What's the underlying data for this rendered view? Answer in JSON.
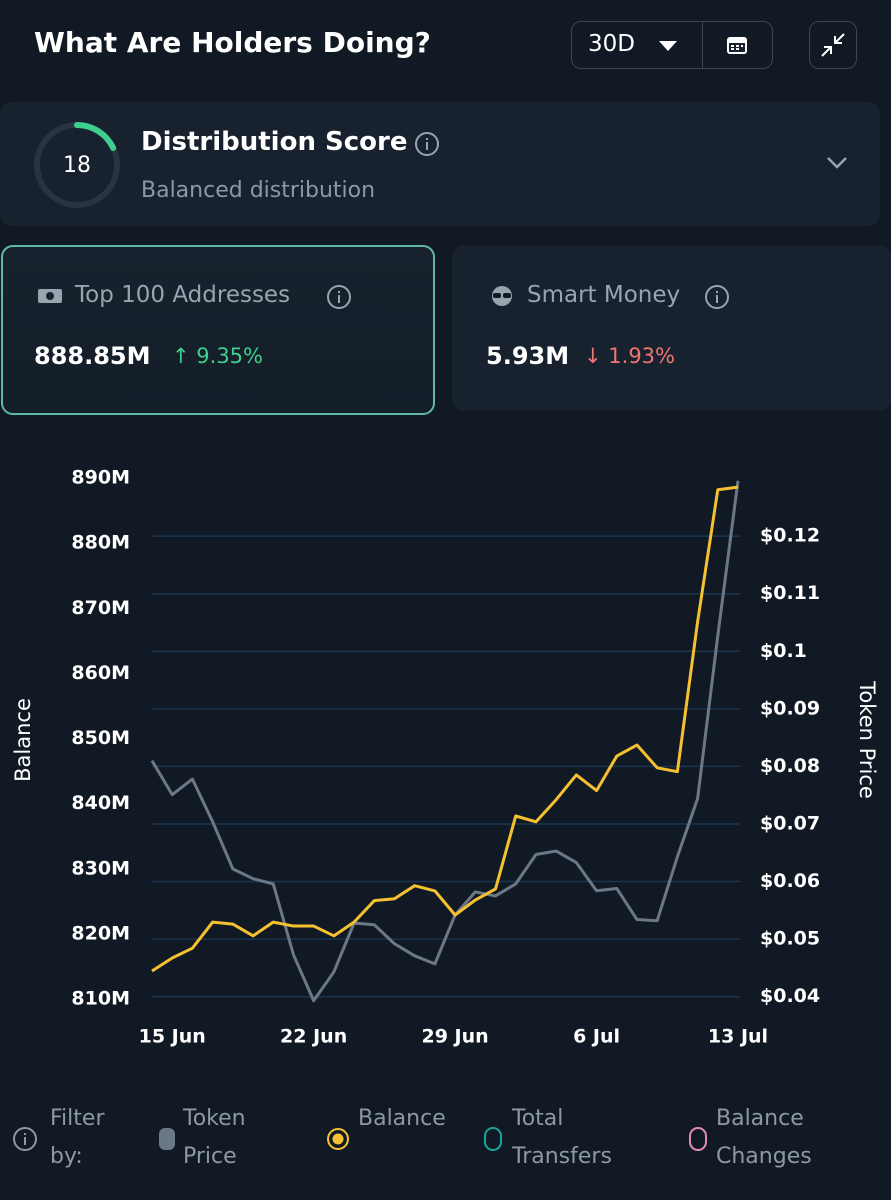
{
  "header": {
    "title": "What Are Holders Doing?",
    "period": "30D"
  },
  "score": {
    "value": 18,
    "max": 100,
    "title": "Distribution Score",
    "subtitle": "Balanced distribution",
    "color": "#3ecf8e"
  },
  "cards": [
    {
      "label": "Top 100 Addresses",
      "value": "888.85M",
      "change": "9.35%",
      "direction": "up"
    },
    {
      "label": "Smart Money",
      "value": "5.93M",
      "change": "1.93%",
      "direction": "down"
    }
  ],
  "chart_data": {
    "type": "line",
    "ylabel": "Balance",
    "y2label": "Token Price",
    "categories": [
      null,
      "15 Jun",
      null,
      null,
      null,
      null,
      null,
      null,
      "22 Jun",
      null,
      null,
      null,
      null,
      null,
      null,
      "29 Jun",
      null,
      null,
      null,
      null,
      null,
      null,
      "6 Jul",
      null,
      null,
      null,
      null,
      null,
      null,
      "13 Jul"
    ],
    "series": [
      {
        "name": "Token Price",
        "color": "#6b7888",
        "axis": "y2",
        "values": [
          0.081,
          0.0751,
          0.0778,
          0.0704,
          0.0622,
          0.0605,
          0.0596,
          0.0473,
          0.0393,
          0.0443,
          0.0528,
          0.0525,
          0.0492,
          0.0471,
          0.0457,
          0.0542,
          0.0582,
          0.0575,
          0.0596,
          0.0647,
          0.0653,
          0.0633,
          0.0584,
          0.0588,
          0.0534,
          0.0532,
          0.0643,
          0.0744,
          0.1027,
          0.1296
        ]
      },
      {
        "name": "Balance",
        "color": "#f5c131",
        "values": [
          814.3,
          816.3,
          817.8,
          821.8,
          821.5,
          819.7,
          821.8,
          821.2,
          821.2,
          819.7,
          821.8,
          825.1,
          825.4,
          827.4,
          826.6,
          822.9,
          825.2,
          826.9,
          838.1,
          837.2,
          840.6,
          844.4,
          842.0,
          847.3,
          849.0,
          845.5,
          844.9,
          867.9,
          888.2,
          888.6
        ]
      }
    ],
    "ylim": [
      810,
      890
    ],
    "yticks": [
      {
        "value": 810,
        "label": "810M"
      },
      {
        "value": 820,
        "label": "820M"
      },
      {
        "value": 830,
        "label": "830M"
      },
      {
        "value": 840,
        "label": "840M"
      },
      {
        "value": 850,
        "label": "850M"
      },
      {
        "value": 860,
        "label": "860M"
      },
      {
        "value": 870,
        "label": "870M"
      },
      {
        "value": 880,
        "label": "880M"
      },
      {
        "value": 890,
        "label": "890M"
      }
    ],
    "y2lim": [
      0.0396,
      0.1301
    ],
    "y2ticks": [
      {
        "value": 0.04,
        "label": "$0.04"
      },
      {
        "value": 0.05,
        "label": "$0.05"
      },
      {
        "value": 0.06,
        "label": "$0.06"
      },
      {
        "value": 0.07,
        "label": "$0.07"
      },
      {
        "value": 0.08,
        "label": "$0.08"
      },
      {
        "value": 0.09,
        "label": "$0.09"
      },
      {
        "value": 0.1,
        "label": "$0.1"
      },
      {
        "value": 0.11,
        "label": "$0.11"
      },
      {
        "value": 0.12,
        "label": "$0.12"
      }
    ],
    "grid": true,
    "grid_color": "#1b3550"
  },
  "filter": {
    "label": "Filter by:",
    "others": [
      {
        "name": "Total Transfers",
        "color": "#1aa39a"
      },
      {
        "name": "Balance Changes",
        "color": "#e38ab8"
      }
    ]
  }
}
